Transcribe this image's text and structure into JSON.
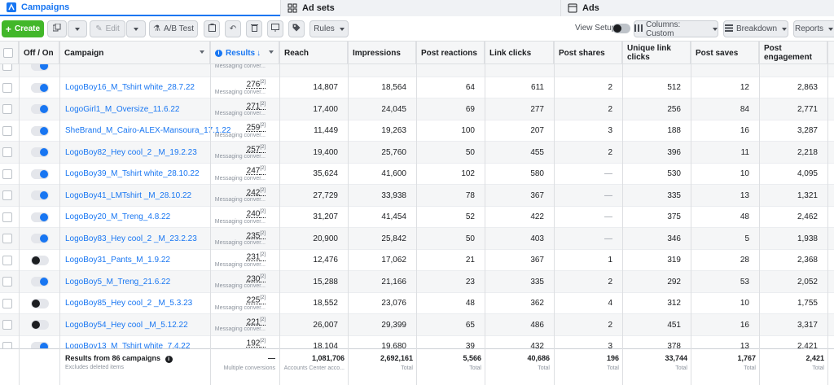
{
  "tabs": [
    {
      "label": "Campaigns",
      "icon": "campaign-icon"
    },
    {
      "label": "Ad sets",
      "icon": "grid-icon"
    },
    {
      "label": "Ads",
      "icon": "ad-icon"
    }
  ],
  "toolbar": {
    "create_label": "Create",
    "edit_label": "Edit",
    "ab_test_label": "A/B Test",
    "rules_label": "Rules",
    "view_setup_label": "View Setup",
    "columns_label": "Columns: Custom",
    "breakdown_label": "Breakdown",
    "reports_label": "Reports"
  },
  "columns": {
    "off_on": "Off / On",
    "campaign": "Campaign",
    "results": "Results",
    "reach": "Reach",
    "impressions": "Impressions",
    "post_reactions": "Post reactions",
    "link_clicks": "Link clicks",
    "post_shares": "Post shares",
    "unique_link_clicks": "Unique link clicks",
    "post_saves": "Post saves",
    "post_engagement": "Post engagement"
  },
  "result_sub": "Messaging conver...",
  "rows": [
    {
      "on": true,
      "name": "",
      "results": "",
      "reach": "",
      "impressions": "",
      "reactions": "",
      "link_clicks": "",
      "shares": "",
      "unique": "",
      "saves": "",
      "engagement": "",
      "partial": true
    },
    {
      "on": true,
      "name": "LogoBoy16_M_Tshirt white_28.7.22",
      "results": "276",
      "reach": "14,807",
      "impressions": "18,564",
      "reactions": "64",
      "link_clicks": "611",
      "shares": "2",
      "unique": "512",
      "saves": "12",
      "engagement": "2,863"
    },
    {
      "on": true,
      "name": "LogoGirl1_M_Oversize_11.6.22",
      "results": "271",
      "reach": "17,400",
      "impressions": "24,045",
      "reactions": "69",
      "link_clicks": "277",
      "shares": "2",
      "unique": "256",
      "saves": "84",
      "engagement": "2,771"
    },
    {
      "on": true,
      "name": "SheBrand_M_Cairo-ALEX-Mansoura_17.1.22",
      "results": "259",
      "reach": "11,449",
      "impressions": "19,263",
      "reactions": "100",
      "link_clicks": "207",
      "shares": "3",
      "unique": "188",
      "saves": "16",
      "engagement": "3,287"
    },
    {
      "on": true,
      "name": "LogoBoy82_Hey cool_2 _M_19.2.23",
      "results": "257",
      "reach": "19,400",
      "impressions": "25,760",
      "reactions": "50",
      "link_clicks": "455",
      "shares": "2",
      "unique": "396",
      "saves": "11",
      "engagement": "2,218"
    },
    {
      "on": true,
      "name": "LogoBoy39_M_Tshirt white_28.10.22",
      "results": "247",
      "reach": "35,624",
      "impressions": "41,600",
      "reactions": "102",
      "link_clicks": "580",
      "shares": "—",
      "unique": "530",
      "saves": "10",
      "engagement": "4,095"
    },
    {
      "on": true,
      "name": "LogoBoy41_LMTshirt _M_28.10.22",
      "results": "242",
      "reach": "27,729",
      "impressions": "33,938",
      "reactions": "78",
      "link_clicks": "367",
      "shares": "—",
      "unique": "335",
      "saves": "13",
      "engagement": "1,321"
    },
    {
      "on": true,
      "name": "LogoBoy20_M_Treng_4.8.22",
      "results": "240",
      "reach": "31,207",
      "impressions": "41,454",
      "reactions": "52",
      "link_clicks": "422",
      "shares": "—",
      "unique": "375",
      "saves": "48",
      "engagement": "2,462"
    },
    {
      "on": true,
      "name": "LogoBoy83_Hey cool_2 _M_23.2.23",
      "results": "235",
      "reach": "20,900",
      "impressions": "25,842",
      "reactions": "50",
      "link_clicks": "403",
      "shares": "—",
      "unique": "346",
      "saves": "5",
      "engagement": "1,938"
    },
    {
      "on": false,
      "name": "LogoBoy31_Pants_M_1.9.22",
      "results": "231",
      "reach": "12,476",
      "impressions": "17,062",
      "reactions": "21",
      "link_clicks": "367",
      "shares": "1",
      "unique": "319",
      "saves": "28",
      "engagement": "2,368"
    },
    {
      "on": true,
      "name": "LogoBoy5_M_Treng_21.6.22",
      "results": "230",
      "reach": "15,288",
      "impressions": "21,166",
      "reactions": "23",
      "link_clicks": "335",
      "shares": "2",
      "unique": "292",
      "saves": "53",
      "engagement": "2,052"
    },
    {
      "on": false,
      "name": "LogoBoy85_Hey cool_2 _M_5.3.23",
      "results": "225",
      "reach": "18,552",
      "impressions": "23,076",
      "reactions": "48",
      "link_clicks": "362",
      "shares": "4",
      "unique": "312",
      "saves": "10",
      "engagement": "1,755"
    },
    {
      "on": false,
      "name": "LogoBoy54_Hey cool _M_5.12.22",
      "results": "221",
      "reach": "26,007",
      "impressions": "29,399",
      "reactions": "65",
      "link_clicks": "486",
      "shares": "2",
      "unique": "451",
      "saves": "16",
      "engagement": "3,317"
    },
    {
      "on": true,
      "name": "LogoBoy13_M_Tshirt white_7.4.22",
      "results": "192",
      "reach": "18,104",
      "impressions": "19,680",
      "reactions": "39",
      "link_clicks": "432",
      "shares": "3",
      "unique": "378",
      "saves": "13",
      "engagement": "2,421"
    }
  ],
  "footer": {
    "title": "Results from 86 campaigns",
    "subtitle": "Excludes deleted items",
    "results": "—",
    "results_sub": "Multiple conversions",
    "reach": "1,081,706",
    "reach_sub": "Accounts Center acco...",
    "impressions": "2,692,161",
    "impressions_sub": "Total",
    "reactions": "5,566",
    "reactions_sub": "Total",
    "link_clicks": "40,686",
    "link_clicks_sub": "Total",
    "shares": "196",
    "shares_sub": "Total",
    "unique": "33,744",
    "unique_sub": "Total",
    "saves": "1,767",
    "saves_sub": "Total",
    "engagement": "2,421",
    "engagement_sub": "Total"
  },
  "colors": {
    "accent": "#1876f2",
    "create": "#42b72a"
  }
}
